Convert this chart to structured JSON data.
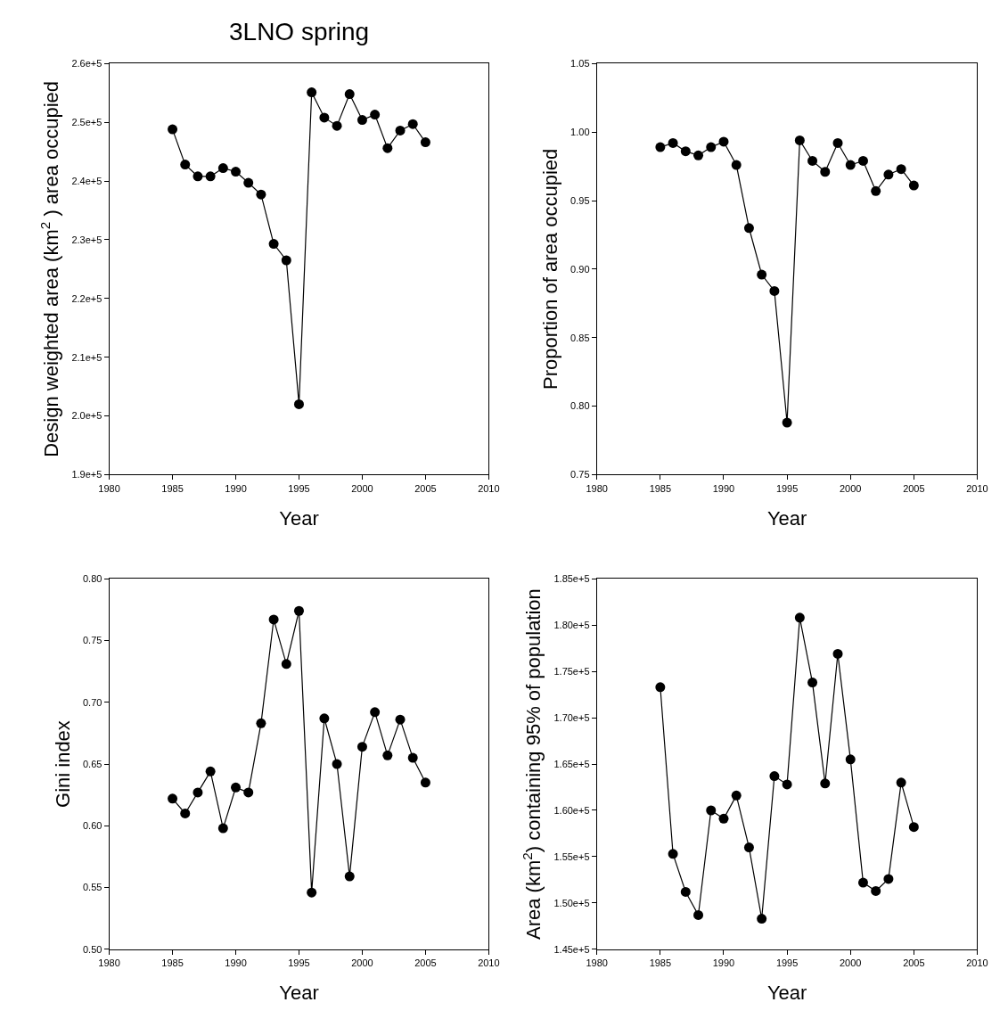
{
  "chart_data": [
    {
      "type": "line",
      "title": "3LNO spring",
      "xlabel": "Year",
      "ylabel": "Design weighted area (km$^{2}$ ) area occupied",
      "marker": "circle",
      "line_style": "solid",
      "x": [
        1985,
        1986,
        1987,
        1988,
        1989,
        1990,
        1991,
        1992,
        1993,
        1994,
        1995,
        1996,
        1997,
        1998,
        1999,
        2000,
        2001,
        2002,
        2003,
        2004,
        2005
      ],
      "series": [
        {
          "color": "#000000",
          "values": [
            248800,
            242800,
            240800,
            240800,
            242200,
            241600,
            239700,
            237700,
            229300,
            226500,
            202000,
            255100,
            250800,
            249400,
            254800,
            250400,
            251300,
            245600,
            248600,
            249700,
            246600
          ]
        }
      ],
      "xlim": [
        1980,
        2010
      ],
      "xticks": [
        1980,
        1985,
        1990,
        1995,
        2000,
        2005,
        2010
      ],
      "ylim": [
        190000,
        260000
      ],
      "yticks": [
        {
          "value": 190000,
          "label": "1.9e+5"
        },
        {
          "value": 200000,
          "label": "2.0e+5"
        },
        {
          "value": 210000,
          "label": "2.1e+5"
        },
        {
          "value": 220000,
          "label": "2.2e+5"
        },
        {
          "value": 230000,
          "label": "2.3e+5"
        },
        {
          "value": 240000,
          "label": "2.4e+5"
        },
        {
          "value": 250000,
          "label": "2.5e+5"
        },
        {
          "value": 260000,
          "label": "2.6e+5"
        }
      ]
    },
    {
      "type": "line",
      "xlabel": "Year",
      "ylabel": "Proportion of area occupied",
      "marker": "circle",
      "line_style": "solid",
      "x": [
        1985,
        1986,
        1987,
        1988,
        1989,
        1990,
        1991,
        1992,
        1993,
        1994,
        1995,
        1996,
        1997,
        1998,
        1999,
        2000,
        2001,
        2002,
        2003,
        2004,
        2005
      ],
      "series": [
        {
          "color": "#000000",
          "values": [
            0.989,
            0.992,
            0.986,
            0.983,
            0.989,
            0.993,
            0.976,
            0.93,
            0.896,
            0.884,
            0.788,
            0.994,
            0.979,
            0.971,
            0.992,
            0.976,
            0.979,
            0.957,
            0.969,
            0.973,
            0.961
          ]
        }
      ],
      "xlim": [
        1980,
        2010
      ],
      "xticks": [
        1980,
        1985,
        1990,
        1995,
        2000,
        2005,
        2010
      ],
      "ylim": [
        0.75,
        1.05
      ],
      "yticks": [
        {
          "value": 0.75,
          "label": "0.75"
        },
        {
          "value": 0.8,
          "label": "0.80"
        },
        {
          "value": 0.85,
          "label": "0.85"
        },
        {
          "value": 0.9,
          "label": "0.90"
        },
        {
          "value": 0.95,
          "label": "0.95"
        },
        {
          "value": 1.0,
          "label": "1.00"
        },
        {
          "value": 1.05,
          "label": "1.05"
        }
      ]
    },
    {
      "type": "line",
      "xlabel": "Year",
      "ylabel": "Gini index",
      "marker": "circle",
      "line_style": "solid",
      "x": [
        1985,
        1986,
        1987,
        1988,
        1989,
        1990,
        1991,
        1992,
        1993,
        1994,
        1995,
        1996,
        1997,
        1998,
        1999,
        2000,
        2001,
        2002,
        2003,
        2004,
        2005
      ],
      "series": [
        {
          "color": "#000000",
          "values": [
            0.622,
            0.61,
            0.627,
            0.644,
            0.598,
            0.631,
            0.627,
            0.683,
            0.767,
            0.731,
            0.774,
            0.546,
            0.687,
            0.65,
            0.559,
            0.664,
            0.692,
            0.657,
            0.686,
            0.655,
            0.635
          ]
        }
      ],
      "xlim": [
        1980,
        2010
      ],
      "xticks": [
        1980,
        1985,
        1990,
        1995,
        2000,
        2005,
        2010
      ],
      "ylim": [
        0.5,
        0.8
      ],
      "yticks": [
        {
          "value": 0.5,
          "label": "0.50"
        },
        {
          "value": 0.55,
          "label": "0.55"
        },
        {
          "value": 0.6,
          "label": "0.60"
        },
        {
          "value": 0.65,
          "label": "0.65"
        },
        {
          "value": 0.7,
          "label": "0.70"
        },
        {
          "value": 0.75,
          "label": "0.75"
        },
        {
          "value": 0.8,
          "label": "0.80"
        }
      ]
    },
    {
      "type": "line",
      "xlabel": "Year",
      "ylabel": "Area (km$^{2}$) containing 95% of population",
      "marker": "circle",
      "line_style": "solid",
      "x": [
        1985,
        1986,
        1987,
        1988,
        1989,
        1990,
        1991,
        1992,
        1993,
        1994,
        1995,
        1996,
        1997,
        1998,
        1999,
        2000,
        2001,
        2002,
        2003,
        2004,
        2005
      ],
      "series": [
        {
          "color": "#000000",
          "values": [
            173300,
            155300,
            151200,
            148700,
            160000,
            159100,
            161600,
            156000,
            148300,
            163700,
            162800,
            180800,
            173800,
            162900,
            176900,
            165500,
            152200,
            151300,
            152600,
            163000,
            158200
          ]
        }
      ],
      "xlim": [
        1980,
        2010
      ],
      "xticks": [
        1980,
        1985,
        1990,
        1995,
        2000,
        2005,
        2010
      ],
      "ylim": [
        145000,
        185000
      ],
      "yticks": [
        {
          "value": 145000,
          "label": "1.45e+5"
        },
        {
          "value": 150000,
          "label": "1.50e+5"
        },
        {
          "value": 155000,
          "label": "1.55e+5"
        },
        {
          "value": 160000,
          "label": "1.60e+5"
        },
        {
          "value": 165000,
          "label": "1.65e+5"
        },
        {
          "value": 170000,
          "label": "1.70e+5"
        },
        {
          "value": 175000,
          "label": "1.75e+5"
        },
        {
          "value": 180000,
          "label": "1.80e+5"
        },
        {
          "value": 185000,
          "label": "1.85e+5"
        }
      ]
    }
  ]
}
